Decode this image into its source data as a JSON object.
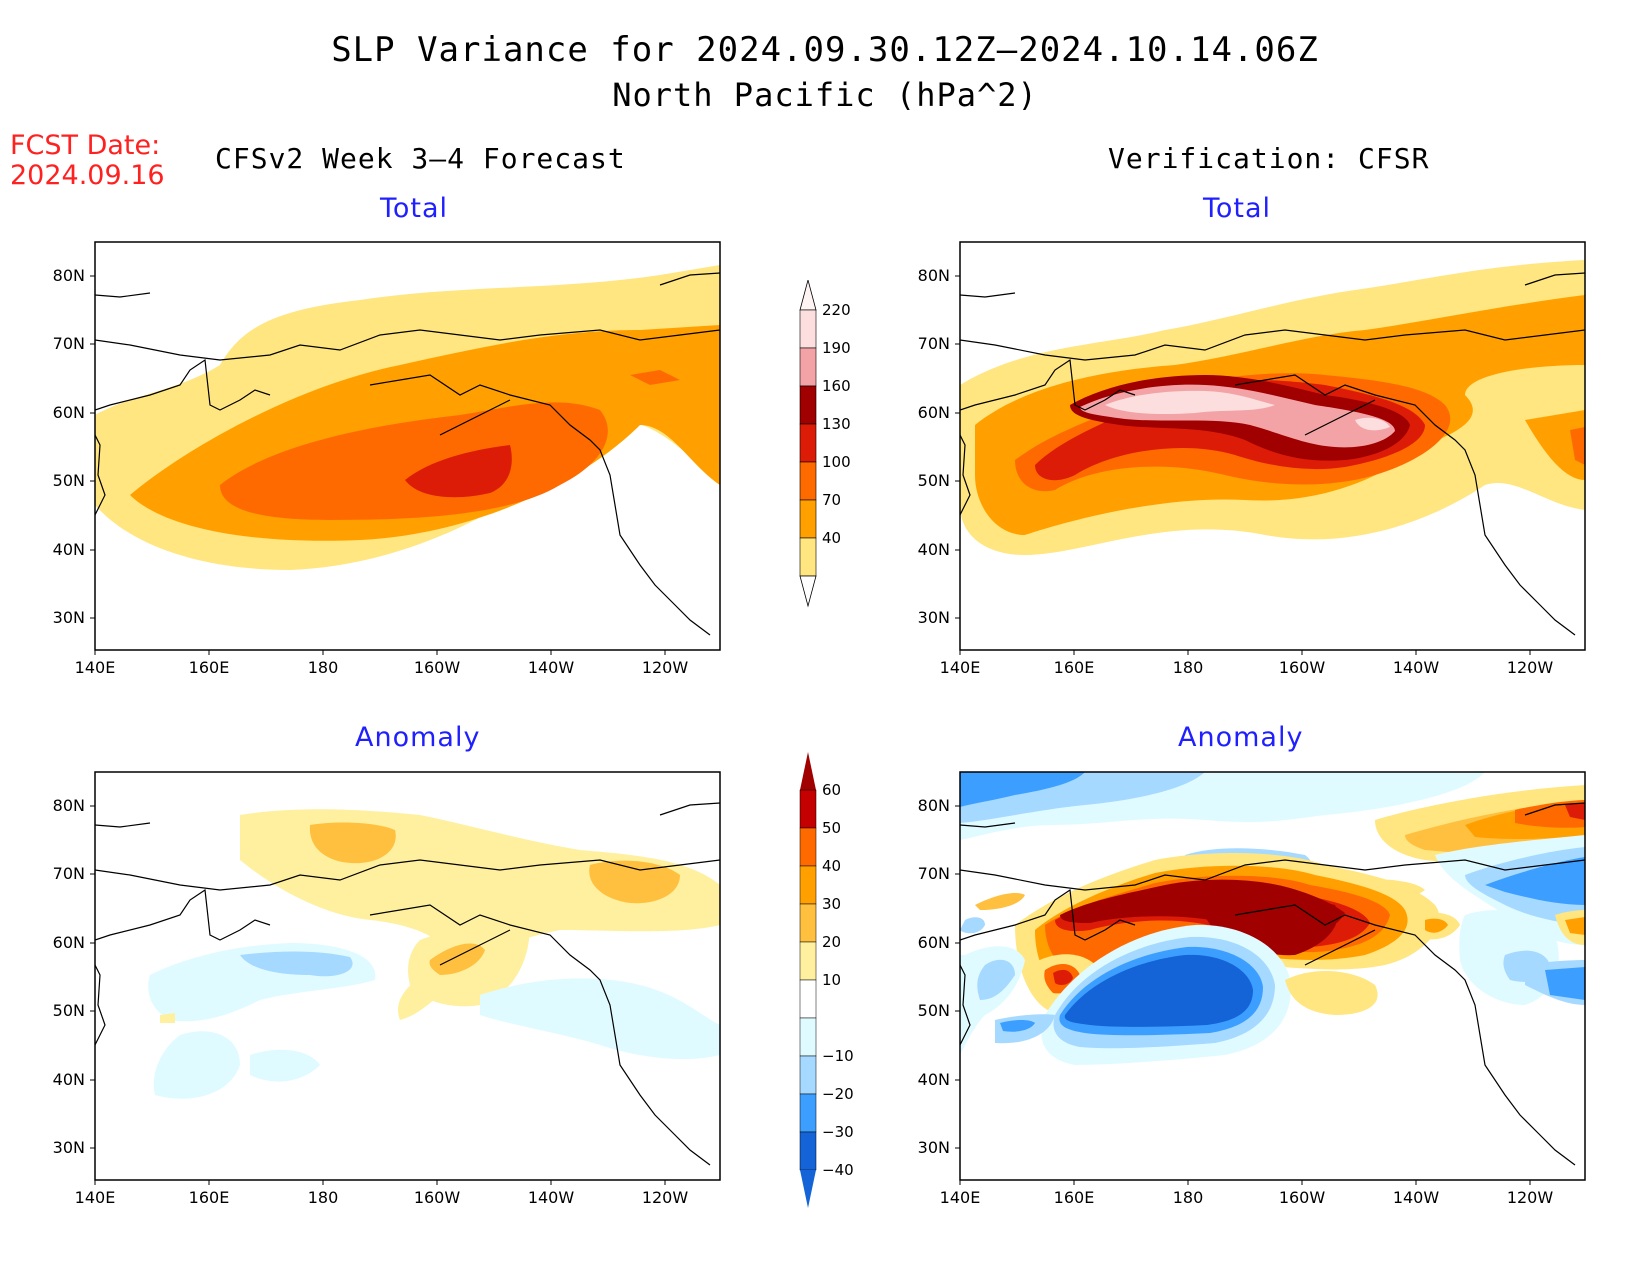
{
  "title": "SLP Variance for 2024.09.30.12Z–2024.10.14.06Z",
  "subtitle": "North Pacific (hPa^2)",
  "fcst_date_label": "FCST Date:",
  "fcst_date_value": "2024.09.16",
  "left_column_title": "CFSv2 Week 3–4 Forecast",
  "right_column_title": "Verification: CFSR",
  "panels": {
    "fcst_total": {
      "title": "Total"
    },
    "verif_total": {
      "title": "Total"
    },
    "fcst_anom": {
      "title": "Anomaly"
    },
    "verif_anom": {
      "title": "Anomaly"
    }
  },
  "axes": {
    "lat_ticks": [
      "80N",
      "70N",
      "60N",
      "50N",
      "40N",
      "30N"
    ],
    "lon_ticks": [
      "140E",
      "160E",
      "180",
      "160W",
      "140W",
      "120W"
    ]
  },
  "colorbar_total": {
    "labels": [
      "220",
      "190",
      "160",
      "130",
      "100",
      "70",
      "40"
    ],
    "colors": [
      "#fcdede",
      "#f3a3a5",
      "#a00000",
      "#dd1c08",
      "#ff6a00",
      "#ffa000",
      "#ffe680"
    ]
  },
  "colorbar_anomaly": {
    "labels": [
      "60",
      "50",
      "40",
      "30",
      "20",
      "10",
      "−10",
      "−20",
      "−30",
      "−40"
    ],
    "colors_top": "#a00000",
    "colors": [
      "#c40000",
      "#ff6a00",
      "#ffa000",
      "#ffc040",
      "#fff0a0",
      "#ffffff",
      "#e0fbff",
      "#a6d9ff",
      "#3c9fff",
      "#1464d8"
    ],
    "colors_bottom": "#1464d8"
  },
  "colors": {
    "title_text": "#000000",
    "fcst_date_text": "#ff2020",
    "panel_title_text": "#2020ff"
  }
}
